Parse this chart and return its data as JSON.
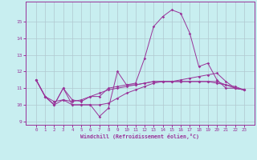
{
  "xlabel": "Windchill (Refroidissement éolien,°C)",
  "background_color": "#c8eef0",
  "line_color": "#993399",
  "grid_color": "#b0c8d0",
  "x_values": [
    0,
    1,
    2,
    3,
    4,
    5,
    6,
    7,
    8,
    9,
    10,
    11,
    12,
    13,
    14,
    15,
    16,
    17,
    18,
    19,
    20,
    21,
    22,
    23
  ],
  "series1": [
    11.5,
    10.5,
    10.0,
    11.0,
    10.0,
    10.0,
    10.0,
    9.3,
    9.8,
    12.0,
    11.2,
    11.3,
    12.8,
    14.7,
    15.3,
    15.7,
    15.5,
    14.3,
    12.3,
    12.5,
    11.5,
    11.0,
    11.0,
    10.9
  ],
  "series2": [
    11.5,
    10.5,
    10.0,
    11.0,
    10.3,
    10.2,
    10.5,
    10.5,
    11.0,
    11.1,
    11.2,
    11.2,
    11.3,
    11.4,
    11.4,
    11.4,
    11.4,
    11.4,
    11.4,
    11.4,
    11.4,
    11.2,
    11.0,
    10.9
  ],
  "series3": [
    11.5,
    10.5,
    10.0,
    10.3,
    10.0,
    10.0,
    10.0,
    10.0,
    10.1,
    10.4,
    10.7,
    10.9,
    11.1,
    11.3,
    11.4,
    11.4,
    11.5,
    11.6,
    11.7,
    11.8,
    11.9,
    11.4,
    11.0,
    10.9
  ],
  "series4": [
    11.5,
    10.5,
    10.2,
    10.3,
    10.2,
    10.3,
    10.5,
    10.7,
    10.9,
    11.0,
    11.1,
    11.2,
    11.3,
    11.4,
    11.4,
    11.4,
    11.4,
    11.4,
    11.4,
    11.4,
    11.3,
    11.2,
    11.1,
    10.9
  ],
  "ylim": [
    8.8,
    16.2
  ],
  "yticks": [
    9,
    10,
    11,
    12,
    13,
    14,
    15
  ],
  "xticks": [
    0,
    1,
    2,
    3,
    4,
    5,
    6,
    7,
    8,
    9,
    10,
    11,
    12,
    13,
    14,
    15,
    16,
    17,
    18,
    19,
    20,
    21,
    22,
    23
  ]
}
